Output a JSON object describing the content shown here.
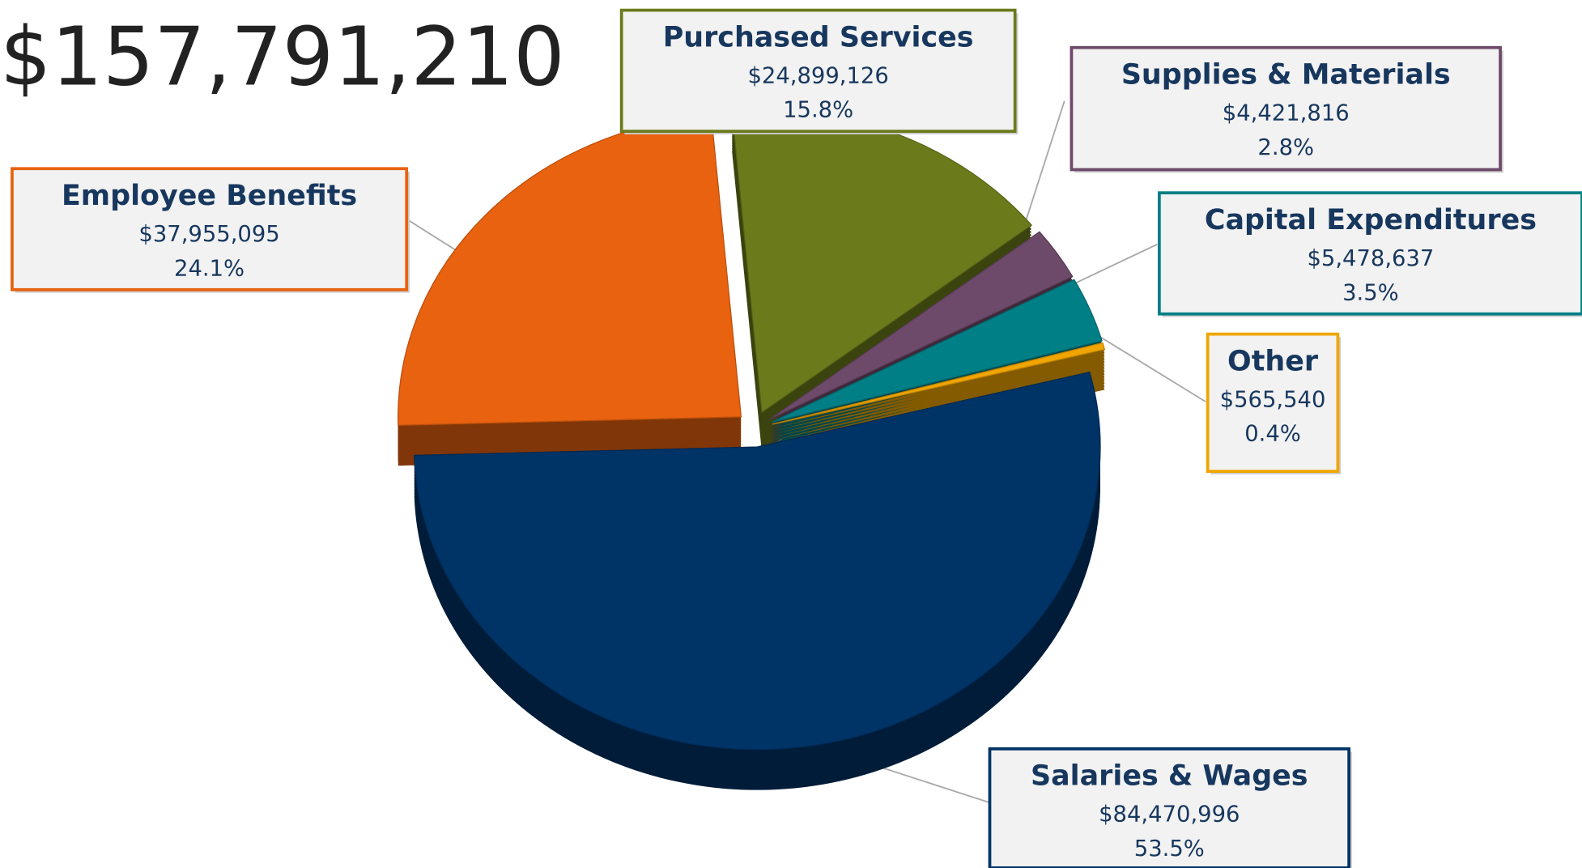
{
  "chart_data": {
    "type": "pie",
    "title": "$157,791,210",
    "categories": [
      "Purchased Services",
      "Supplies & Materials",
      "Capital Expenditures",
      "Other",
      "Salaries & Wages",
      "Employee Benefits"
    ],
    "values": [
      24899126,
      4421816,
      5478637,
      565540,
      84470996,
      37955095
    ],
    "value_labels": [
      "$24,899,126",
      "$4,421,816",
      "$5,478,637",
      "$565,540",
      "$84,470,996",
      "$37,955,095"
    ],
    "percent_labels": [
      "15.8%",
      "2.8%",
      "3.5%",
      "0.4%",
      "53.5%",
      "24.1%"
    ],
    "colors": [
      "#6b7b1c",
      "#6e4a6a",
      "#007f86",
      "#f0a500",
      "#003366",
      "#e8620f"
    ]
  }
}
